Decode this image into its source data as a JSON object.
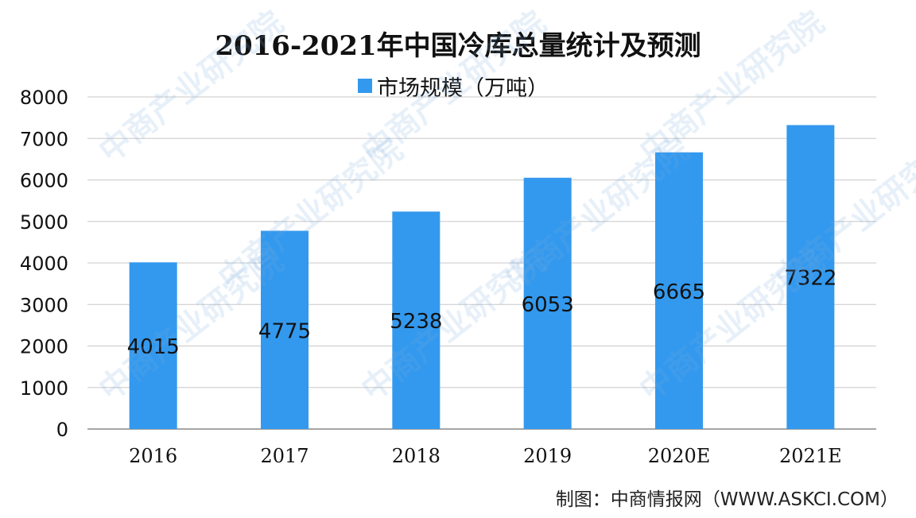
{
  "chart_data": {
    "type": "bar",
    "title": "2016-2021年中国冷库总量统计及预测",
    "categories": [
      "2016",
      "2017",
      "2018",
      "2019",
      "2020E",
      "2021E"
    ],
    "series": [
      {
        "name": "市场规模（万吨）",
        "values": [
          4015,
          4775,
          5238,
          6053,
          6665,
          7322
        ]
      }
    ],
    "ylim": [
      0,
      8000
    ],
    "yticks": [
      0,
      1000,
      2000,
      3000,
      4000,
      5000,
      6000,
      7000,
      8000
    ],
    "grid": true,
    "legend_position": "top",
    "bar_color": "#3399ee",
    "data_labels": true
  },
  "source": "制图：中商情报网（WWW.ASKCI.COM）",
  "watermark": "中商产业研究院"
}
